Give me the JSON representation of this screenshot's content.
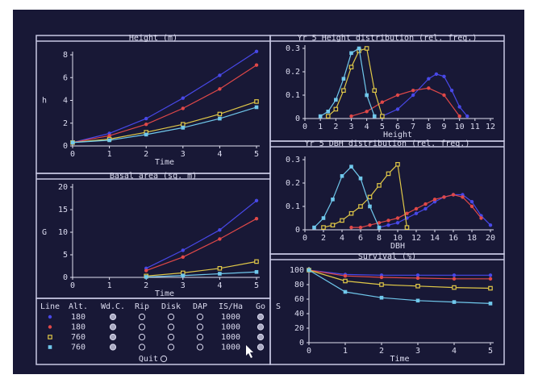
{
  "chart_data": [
    {
      "type": "line",
      "title": "Height (m)",
      "xlabel": "Time",
      "ylabel": "h",
      "x": [
        0,
        1,
        2,
        3,
        4,
        5
      ],
      "xlim": [
        0,
        5
      ],
      "ylim": [
        0,
        8
      ],
      "xticks": [
        0,
        1,
        2,
        3,
        4,
        5
      ],
      "yticks": [
        0,
        2,
        4,
        6,
        8
      ],
      "series": [
        {
          "color": "#4848e8",
          "marker": "circle",
          "values": [
            0.3,
            1.1,
            2.4,
            4.2,
            6.2,
            8.3
          ]
        },
        {
          "color": "#e04848",
          "marker": "circle",
          "values": [
            0.3,
            0.9,
            1.9,
            3.3,
            5.0,
            7.1
          ]
        },
        {
          "color": "#e0c848",
          "marker": "square-open",
          "values": [
            0.3,
            0.6,
            1.2,
            1.9,
            2.8,
            3.9
          ]
        },
        {
          "color": "#70c8ec",
          "marker": "square",
          "values": [
            0.3,
            0.5,
            1.0,
            1.6,
            2.4,
            3.4
          ]
        }
      ]
    },
    {
      "type": "line",
      "title": "Basal area (sq. m)",
      "xlabel": "Time",
      "ylabel": "G",
      "x": [
        0,
        1,
        2,
        3,
        4,
        5
      ],
      "xlim": [
        0,
        5
      ],
      "ylim": [
        0,
        20
      ],
      "xticks": [
        0,
        1,
        2,
        3,
        4,
        5
      ],
      "yticks": [
        0,
        5,
        10,
        15,
        20
      ],
      "series": [
        {
          "color": "#4848e8",
          "marker": "circle",
          "values": [
            null,
            null,
            2,
            6,
            10.5,
            17
          ]
        },
        {
          "color": "#e04848",
          "marker": "circle",
          "values": [
            null,
            null,
            1.5,
            4.5,
            8.5,
            13
          ]
        },
        {
          "color": "#e0c848",
          "marker": "square-open",
          "values": [
            null,
            null,
            0.3,
            1,
            2,
            3.5
          ]
        },
        {
          "color": "#70c8ec",
          "marker": "square",
          "values": [
            null,
            null,
            0.1,
            0.4,
            0.8,
            1.2
          ]
        }
      ]
    },
    {
      "type": "line",
      "title": "Yr 5 Height distribution (rel. freq.)",
      "xlabel": "Height",
      "xlim": [
        0,
        12
      ],
      "ylim": [
        0,
        0.3
      ],
      "xticks": [
        0,
        1,
        2,
        3,
        4,
        5,
        6,
        7,
        8,
        9,
        10,
        11,
        12
      ],
      "yticks": [
        0,
        0.1,
        0.2,
        0.3
      ],
      "series": [
        {
          "color": "#4848e8",
          "marker": "circle",
          "x": [
            5,
            6,
            7,
            8,
            8.5,
            9,
            9.5,
            10,
            10.5
          ],
          "values": [
            0.01,
            0.04,
            0.1,
            0.17,
            0.19,
            0.18,
            0.12,
            0.05,
            0.01
          ]
        },
        {
          "color": "#e04848",
          "marker": "circle",
          "x": [
            3,
            4,
            5,
            6,
            7,
            8,
            9,
            10
          ],
          "values": [
            0.01,
            0.03,
            0.07,
            0.1,
            0.12,
            0.13,
            0.1,
            0.01
          ]
        },
        {
          "color": "#e0c848",
          "marker": "square-open",
          "x": [
            1.5,
            2,
            2.5,
            3,
            3.5,
            4,
            4.5,
            5
          ],
          "values": [
            0.01,
            0.04,
            0.12,
            0.22,
            0.29,
            0.3,
            0.12,
            0.01
          ]
        },
        {
          "color": "#70c8ec",
          "marker": "square",
          "x": [
            1,
            1.5,
            2,
            2.5,
            3,
            3.5,
            4,
            4.5
          ],
          "values": [
            0.01,
            0.03,
            0.08,
            0.17,
            0.28,
            0.3,
            0.1,
            0.01
          ]
        }
      ]
    },
    {
      "type": "line",
      "title": "Yr 5 DBH distribution (rel. freq.)",
      "xlabel": "DBH",
      "xlim": [
        0,
        20
      ],
      "ylim": [
        0,
        0.3
      ],
      "xticks": [
        0,
        2,
        4,
        6,
        8,
        10,
        12,
        14,
        16,
        18,
        20
      ],
      "yticks": [
        0,
        0.1,
        0.2,
        0.3
      ],
      "series": [
        {
          "color": "#4848e8",
          "marker": "circle",
          "x": [
            8,
            9,
            10,
            11,
            12,
            13,
            14,
            15,
            16,
            17,
            18,
            19,
            20
          ],
          "values": [
            0.01,
            0.02,
            0.03,
            0.05,
            0.07,
            0.09,
            0.12,
            0.14,
            0.15,
            0.15,
            0.12,
            0.06,
            0.02
          ]
        },
        {
          "color": "#e04848",
          "marker": "circle",
          "x": [
            5,
            6,
            7,
            8,
            9,
            10,
            11,
            12,
            13,
            14,
            15,
            16,
            17,
            18,
            19
          ],
          "values": [
            0.01,
            0.01,
            0.02,
            0.03,
            0.04,
            0.05,
            0.07,
            0.09,
            0.11,
            0.13,
            0.14,
            0.15,
            0.14,
            0.1,
            0.05
          ]
        },
        {
          "color": "#e0c848",
          "marker": "square-open",
          "x": [
            2,
            3,
            4,
            5,
            6,
            7,
            8,
            9,
            10,
            11
          ],
          "values": [
            0.01,
            0.02,
            0.04,
            0.07,
            0.1,
            0.14,
            0.19,
            0.24,
            0.28,
            0.01
          ]
        },
        {
          "color": "#70c8ec",
          "marker": "square",
          "x": [
            1,
            2,
            3,
            4,
            5,
            6,
            7,
            8
          ],
          "values": [
            0.01,
            0.05,
            0.13,
            0.23,
            0.27,
            0.22,
            0.1,
            0.01
          ]
        }
      ]
    },
    {
      "type": "line",
      "title": "Survival (%)",
      "xlabel": "Time",
      "ylabel": "S",
      "x": [
        0,
        1,
        2,
        3,
        4,
        5
      ],
      "xlim": [
        0,
        5
      ],
      "ylim": [
        0,
        100
      ],
      "xticks": [
        0,
        1,
        2,
        3,
        4,
        5
      ],
      "yticks": [
        0,
        20,
        40,
        60,
        80,
        100
      ],
      "series": [
        {
          "color": "#4848e8",
          "marker": "circle",
          "values": [
            100,
            94,
            93,
            93,
            93,
            93
          ]
        },
        {
          "color": "#e04848",
          "marker": "circle",
          "values": [
            100,
            92,
            90,
            89,
            88,
            88
          ]
        },
        {
          "color": "#e0c848",
          "marker": "square-open",
          "values": [
            100,
            85,
            80,
            78,
            76,
            75
          ]
        },
        {
          "color": "#70c8ec",
          "marker": "square",
          "values": [
            100,
            70,
            62,
            58,
            56,
            54
          ]
        }
      ]
    }
  ],
  "controls": {
    "header": [
      "Line",
      "Alt.",
      "Wd.C.",
      "Rip",
      "Disk",
      "DAP",
      "IS/Ha",
      "Go"
    ],
    "rows": [
      {
        "color": "#4848e8",
        "marker": "circle",
        "alt": "180",
        "options": [
          true,
          false,
          false,
          false
        ],
        "is_ha": "1000",
        "go": true
      },
      {
        "color": "#e04848",
        "marker": "circle",
        "alt": "180",
        "options": [
          true,
          false,
          false,
          false
        ],
        "is_ha": "1000",
        "go": true
      },
      {
        "color": "#e0c848",
        "marker": "square-open",
        "alt": "760",
        "options": [
          true,
          false,
          false,
          false
        ],
        "is_ha": "1000",
        "go": true
      },
      {
        "color": "#70c8ec",
        "marker": "square",
        "alt": "760",
        "options": [
          true,
          false,
          false,
          false
        ],
        "is_ha": "1000",
        "go": true
      }
    ],
    "quit": "Quit"
  }
}
